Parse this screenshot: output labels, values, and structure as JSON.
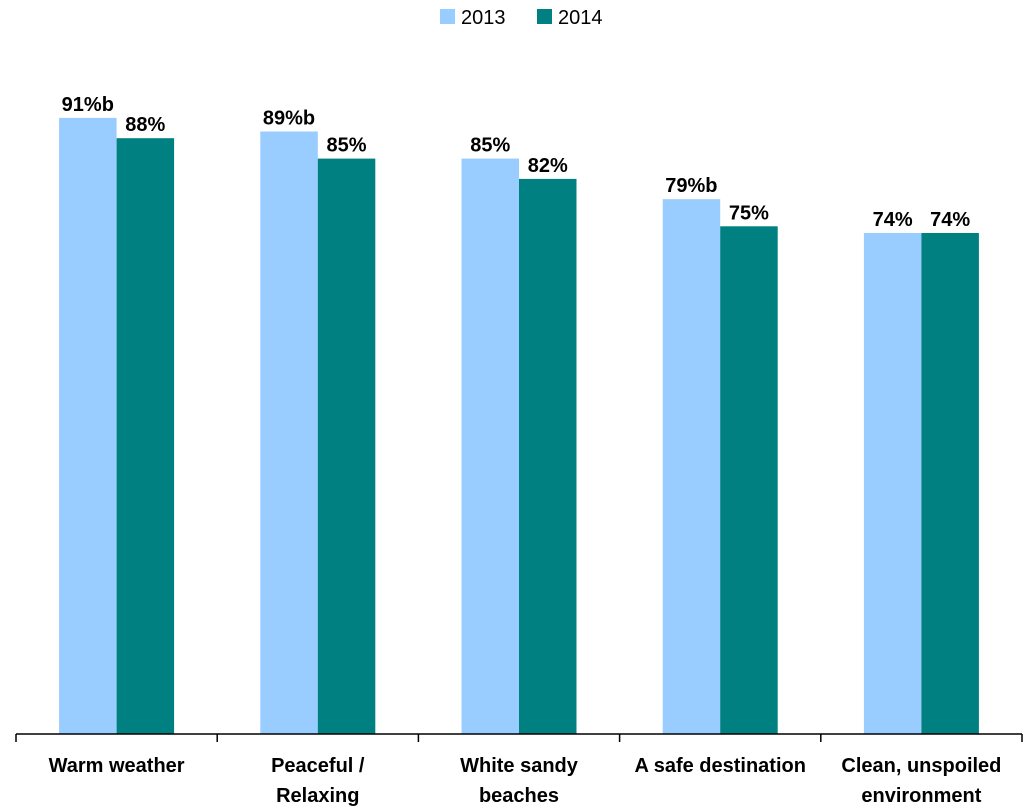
{
  "chart_data": {
    "type": "bar",
    "categories": [
      [
        "Warm weather"
      ],
      [
        "Peaceful /",
        "Relaxing"
      ],
      [
        "White sandy",
        "beaches"
      ],
      [
        "A safe destination"
      ],
      [
        "Clean, unspoiled",
        "environment"
      ]
    ],
    "series": [
      {
        "name": "2013",
        "color": "#99ccff",
        "values": [
          91,
          89,
          85,
          79,
          74
        ],
        "labels": [
          "91%b",
          "89%b",
          "85%",
          "79%b",
          "74%"
        ]
      },
      {
        "name": "2014",
        "color": "#008080",
        "values": [
          88,
          85,
          82,
          75,
          74
        ],
        "labels": [
          "88%",
          "85%",
          "82%",
          "75%",
          "74%"
        ]
      }
    ],
    "ylim": [
      0,
      100
    ],
    "grid": false,
    "legend_position": "top-center",
    "title": "",
    "xlabel": "",
    "ylabel": ""
  }
}
